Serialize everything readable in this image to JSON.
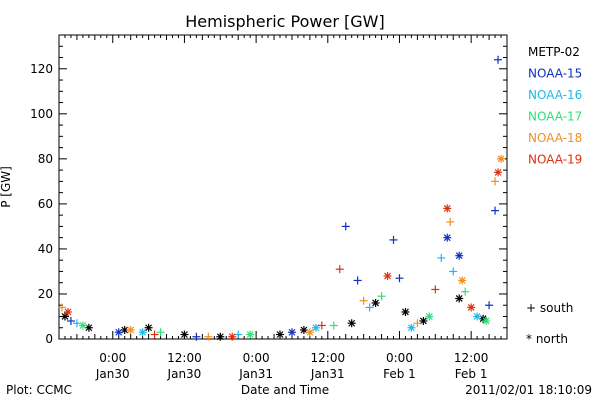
{
  "chart_data": {
    "type": "scatter",
    "title": "Hemispheric Power [GW]",
    "ylabel": "P [GW]",
    "xlabel": "Date and Time",
    "ylim": [
      0,
      135
    ],
    "yticks": [
      0,
      20,
      40,
      60,
      80,
      100,
      120
    ],
    "xlim": [
      "2011-01-29T15:00",
      "2011-02-01T18:00"
    ],
    "xticks": [
      {
        "t": "2011-01-30T00:00",
        "line1": "0:00",
        "line2": "Jan30"
      },
      {
        "t": "2011-01-30T12:00",
        "line1": "12:00",
        "line2": "Jan30"
      },
      {
        "t": "2011-01-31T00:00",
        "line1": "0:00",
        "line2": "Jan31"
      },
      {
        "t": "2011-01-31T12:00",
        "line1": "12:00",
        "line2": "Jan31"
      },
      {
        "t": "2011-02-01T00:00",
        "line1": "0:00",
        "line2": "Feb 1"
      },
      {
        "t": "2011-02-01T12:00",
        "line1": "12:00",
        "line2": "Feb 1"
      }
    ],
    "grid": false,
    "legend_position": "right",
    "marker_legend": [
      {
        "symbol": "+",
        "label": "south"
      },
      {
        "symbol": "*",
        "label": "north"
      }
    ],
    "series": [
      {
        "name": "METP-02",
        "color": "#000000",
        "points": [
          {
            "t": "2011-01-29T16:00",
            "v": 10,
            "m": "*"
          },
          {
            "t": "2011-01-29T20:00",
            "v": 5,
            "m": "*"
          },
          {
            "t": "2011-01-30T02:00",
            "v": 4,
            "m": "*"
          },
          {
            "t": "2011-01-30T06:00",
            "v": 5,
            "m": "*"
          },
          {
            "t": "2011-01-30T12:00",
            "v": 2,
            "m": "*"
          },
          {
            "t": "2011-01-30T18:00",
            "v": 1,
            "m": "*"
          },
          {
            "t": "2011-01-31T04:00",
            "v": 2,
            "m": "*"
          },
          {
            "t": "2011-01-31T08:00",
            "v": 4,
            "m": "*"
          },
          {
            "t": "2011-01-31T16:00",
            "v": 7,
            "m": "*"
          },
          {
            "t": "2011-01-31T20:00",
            "v": 16,
            "m": "*"
          },
          {
            "t": "2011-02-01T01:00",
            "v": 12,
            "m": "*"
          },
          {
            "t": "2011-02-01T04:00",
            "v": 8,
            "m": "*"
          },
          {
            "t": "2011-02-01T10:00",
            "v": 18,
            "m": "*"
          },
          {
            "t": "2011-02-01T14:00",
            "v": 9,
            "m": "*"
          }
        ]
      },
      {
        "name": "NOAA-15",
        "color": "#1030c0",
        "points": [
          {
            "t": "2011-01-29T17:00",
            "v": 8,
            "m": "+"
          },
          {
            "t": "2011-01-30T01:00",
            "v": 3,
            "m": "*"
          },
          {
            "t": "2011-01-30T14:00",
            "v": 1,
            "m": "+"
          },
          {
            "t": "2011-01-31T06:00",
            "v": 3,
            "m": "*"
          },
          {
            "t": "2011-01-31T15:00",
            "v": 50,
            "m": "+"
          },
          {
            "t": "2011-01-31T17:00",
            "v": 26,
            "m": "+"
          },
          {
            "t": "2011-01-31T23:00",
            "v": 44,
            "m": "+"
          },
          {
            "t": "2011-02-01T00:00",
            "v": 27,
            "m": "+"
          },
          {
            "t": "2011-02-01T08:00",
            "v": 45,
            "m": "*"
          },
          {
            "t": "2011-02-01T10:00",
            "v": 37,
            "m": "*"
          },
          {
            "t": "2011-02-01T15:00",
            "v": 15,
            "m": "+"
          },
          {
            "t": "2011-02-01T16:00",
            "v": 57,
            "m": "+"
          },
          {
            "t": "2011-02-01T16:30",
            "v": 124,
            "m": "+"
          }
        ]
      },
      {
        "name": "NOAA-16",
        "color": "#20b8e8",
        "points": [
          {
            "t": "2011-01-29T18:00",
            "v": 7,
            "m": "+"
          },
          {
            "t": "2011-01-30T05:00",
            "v": 3,
            "m": "*"
          },
          {
            "t": "2011-01-30T21:00",
            "v": 2,
            "m": "+"
          },
          {
            "t": "2011-01-31T10:00",
            "v": 5,
            "m": "*"
          },
          {
            "t": "2011-01-31T19:00",
            "v": 14,
            "m": "+"
          },
          {
            "t": "2011-02-01T02:00",
            "v": 5,
            "m": "*"
          },
          {
            "t": "2011-02-01T07:00",
            "v": 36,
            "m": "+"
          },
          {
            "t": "2011-02-01T09:00",
            "v": 30,
            "m": "+"
          },
          {
            "t": "2011-02-01T13:00",
            "v": 10,
            "m": "*"
          }
        ]
      },
      {
        "name": "NOAA-17",
        "color": "#30e078",
        "points": [
          {
            "t": "2011-01-29T19:00",
            "v": 6,
            "m": "*"
          },
          {
            "t": "2011-01-30T08:00",
            "v": 3,
            "m": "+"
          },
          {
            "t": "2011-01-30T23:00",
            "v": 2,
            "m": "*"
          },
          {
            "t": "2011-01-31T13:00",
            "v": 6,
            "m": "+"
          },
          {
            "t": "2011-01-31T21:00",
            "v": 19,
            "m": "+"
          },
          {
            "t": "2011-02-01T05:00",
            "v": 10,
            "m": "*"
          },
          {
            "t": "2011-02-01T11:00",
            "v": 21,
            "m": "+"
          },
          {
            "t": "2011-02-01T14:30",
            "v": 8,
            "m": "*"
          }
        ]
      },
      {
        "name": "NOAA-18",
        "color": "#f09020",
        "points": [
          {
            "t": "2011-01-29T15:30",
            "v": 14,
            "m": "+"
          },
          {
            "t": "2011-01-30T03:00",
            "v": 4,
            "m": "*"
          },
          {
            "t": "2011-01-30T16:00",
            "v": 1,
            "m": "+"
          },
          {
            "t": "2011-01-31T09:00",
            "v": 3,
            "m": "*"
          },
          {
            "t": "2011-01-31T18:00",
            "v": 17,
            "m": "+"
          },
          {
            "t": "2011-02-01T03:00",
            "v": 7,
            "m": "+"
          },
          {
            "t": "2011-02-01T08:30",
            "v": 52,
            "m": "+"
          },
          {
            "t": "2011-02-01T10:30",
            "v": 26,
            "m": "*"
          },
          {
            "t": "2011-02-01T16:00",
            "v": 70,
            "m": "+"
          },
          {
            "t": "2011-02-01T17:00",
            "v": 80,
            "m": "*"
          }
        ]
      },
      {
        "name": "NOAA-19",
        "color": "#e03010",
        "points": [
          {
            "t": "2011-01-29T16:30",
            "v": 12,
            "m": "*"
          },
          {
            "t": "2011-01-30T07:00",
            "v": 2,
            "m": "+"
          },
          {
            "t": "2011-01-30T20:00",
            "v": 1,
            "m": "*"
          },
          {
            "t": "2011-01-31T11:00",
            "v": 6,
            "m": "+"
          },
          {
            "t": "2011-01-31T14:00",
            "v": 31,
            "m": "+"
          },
          {
            "t": "2011-01-31T22:00",
            "v": 28,
            "m": "*"
          },
          {
            "t": "2011-02-01T06:00",
            "v": 22,
            "m": "+"
          },
          {
            "t": "2011-02-01T08:00",
            "v": 58,
            "m": "*"
          },
          {
            "t": "2011-02-01T12:00",
            "v": 14,
            "m": "*"
          },
          {
            "t": "2011-02-01T16:30",
            "v": 74,
            "m": "*"
          }
        ]
      }
    ]
  },
  "footer": {
    "left": "Plot: CCMC",
    "right": "2011/02/01  18:10:09"
  }
}
